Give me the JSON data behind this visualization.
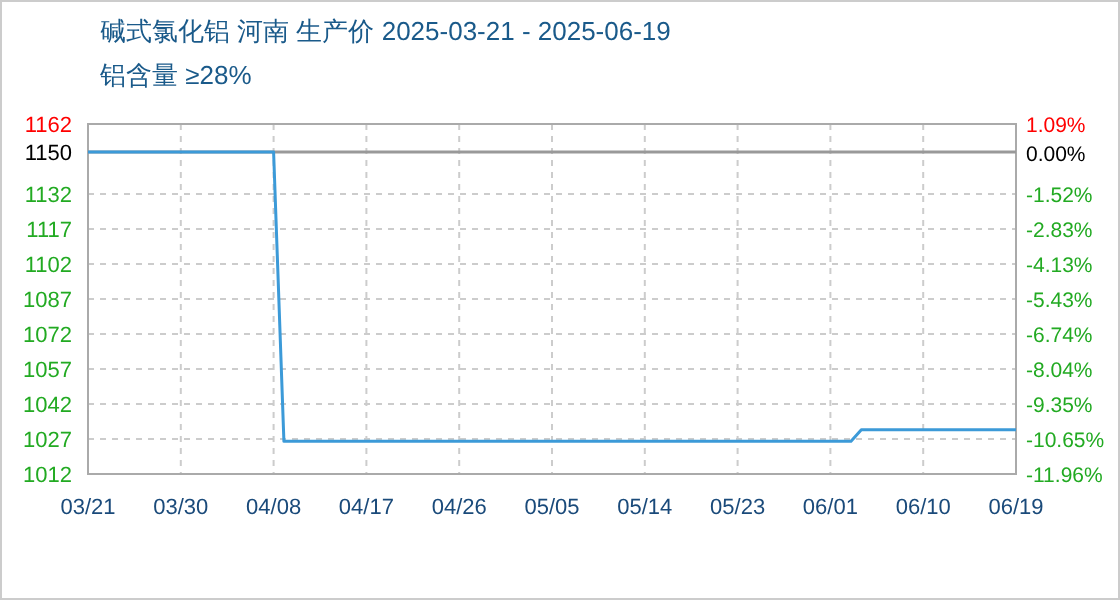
{
  "chart_data": {
    "type": "line",
    "title": "碱式氯化铝 河南 生产价 2025-03-21 - 2025-06-19",
    "subtitle": "铝含量 ≥28%",
    "x": [
      "2025-03-21",
      "2025-04-08",
      "2025-04-09",
      "2025-06-03",
      "2025-06-04",
      "2025-06-19"
    ],
    "series": [
      {
        "color": "#3c9ad8",
        "values": [
          1150,
          1150,
          1026,
          1026,
          1031,
          1031
        ]
      }
    ],
    "xlim": [
      "2025-03-21",
      "2025-06-19"
    ],
    "xticks": [
      {
        "value": "2025-03-21",
        "label": "03/21"
      },
      {
        "value": "2025-03-30",
        "label": "03/30"
      },
      {
        "value": "2025-04-08",
        "label": "04/08"
      },
      {
        "value": "2025-04-17",
        "label": "04/17"
      },
      {
        "value": "2025-04-26",
        "label": "04/26"
      },
      {
        "value": "2025-05-05",
        "label": "05/05"
      },
      {
        "value": "2025-05-14",
        "label": "05/14"
      },
      {
        "value": "2025-05-23",
        "label": "05/23"
      },
      {
        "value": "2025-06-01",
        "label": "06/01"
      },
      {
        "value": "2025-06-10",
        "label": "06/10"
      },
      {
        "value": "2025-06-19",
        "label": "06/19"
      }
    ],
    "ylim": [
      1012,
      1162
    ],
    "yticks": [
      1012,
      1027,
      1042,
      1057,
      1072,
      1087,
      1102,
      1117,
      1132,
      1150,
      1162
    ],
    "y2lim": [
      -11.96,
      1.09
    ],
    "y2ticks": [
      {
        "value": -11.96,
        "label": "-11.96%"
      },
      {
        "value": -10.65,
        "label": "-10.65%"
      },
      {
        "value": -9.35,
        "label": "-9.35%"
      },
      {
        "value": -8.04,
        "label": "-8.04%"
      },
      {
        "value": -6.74,
        "label": "-6.74%"
      },
      {
        "value": -5.43,
        "label": "-5.43%"
      },
      {
        "value": -4.13,
        "label": "-4.13%"
      },
      {
        "value": -2.83,
        "label": "-2.83%"
      },
      {
        "value": -1.52,
        "label": "-1.52%"
      },
      {
        "value": 0,
        "label": "0.00%"
      },
      {
        "value": 1.09,
        "label": "1.09%"
      }
    ],
    "ref_lines": [
      {
        "axis": "y",
        "value": 1150,
        "color": "#999999"
      }
    ],
    "grid": true,
    "line_style": "solid",
    "marker": "none"
  }
}
